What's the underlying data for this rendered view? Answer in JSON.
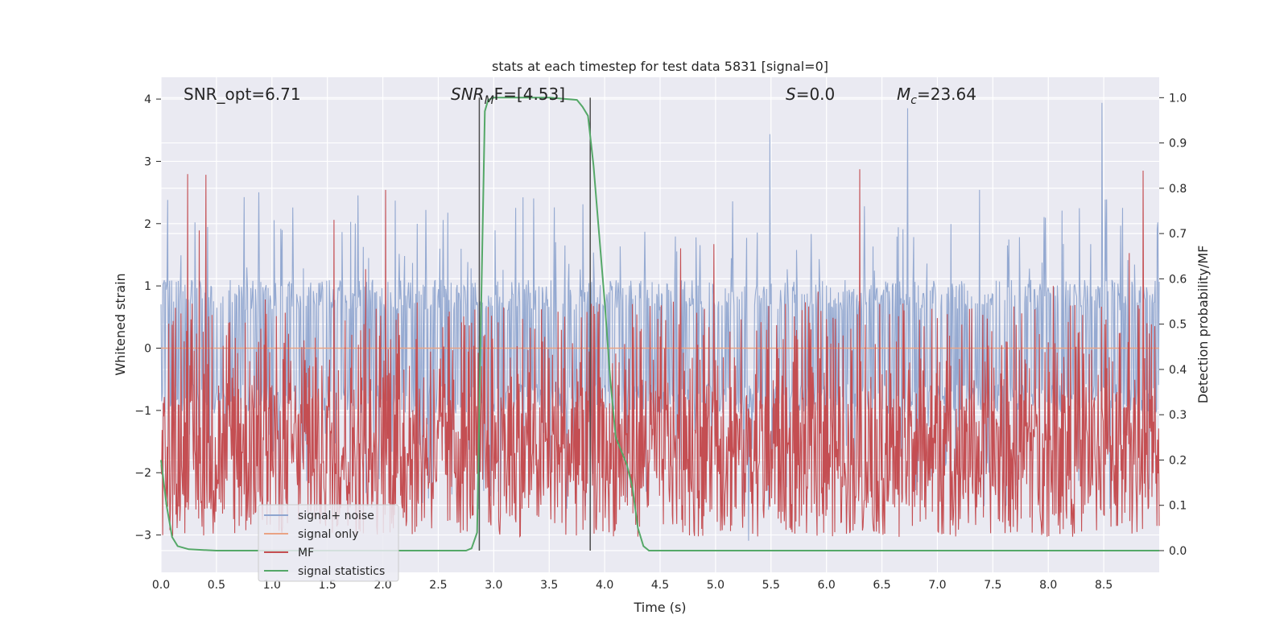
{
  "chart_data": {
    "type": "line",
    "title": "stats at each timestep for test data 5831 [signal=0]",
    "xlabel": "Time (s)",
    "ylabel": "Whitened strain",
    "ylabel_right": "Detection probability/MF",
    "xlim": [
      0.0,
      9.0
    ],
    "ylim": [
      -3.6,
      4.35
    ],
    "ylim_right": [
      -0.048,
      1.045
    ],
    "x_ticks": [
      "0.0",
      "0.5",
      "1.0",
      "1.5",
      "2.0",
      "2.5",
      "3.0",
      "3.5",
      "4.0",
      "4.5",
      "5.0",
      "5.5",
      "6.0",
      "6.5",
      "7.0",
      "7.5",
      "8.0",
      "8.5"
    ],
    "y_ticks": [
      "4",
      "3",
      "2",
      "1",
      "0",
      "−1",
      "−2",
      "−3"
    ],
    "y_right_ticks": [
      "1.0",
      "0.9",
      "0.8",
      "0.7",
      "0.6",
      "0.5",
      "0.4",
      "0.3",
      "0.2",
      "0.1",
      "0.0"
    ],
    "grid": true,
    "legend_position": "lower-left",
    "annotations": {
      "snr_opt": "SNR_opt=6.71",
      "snr_mf_main": "SNR",
      "snr_mf_sub": "M",
      "snr_mf_rest": "F=[4.53]",
      "s_main": "S",
      "s_rest": "=0.0",
      "mc_main": "M",
      "mc_sub": "c",
      "mc_rest": "=23.64"
    },
    "vertical_lines_x": [
      2.87,
      3.87
    ],
    "series": [
      {
        "name": "signal+ noise",
        "color": "#8fa5cf",
        "noise_summary": {
          "core_min": -1.05,
          "core_max": 1.1,
          "peak_max": 3.95,
          "peak_min": -3.25
        }
      },
      {
        "name": "signal only",
        "color": "#e9a384",
        "values_constant": 0.0
      },
      {
        "name": "MF",
        "color": "#c44e52",
        "band_summary": {
          "base_min": 0.03,
          "base_max": 0.55,
          "peak_max": 0.85
        }
      },
      {
        "name": "signal statistics",
        "color": "#55a868",
        "x": [
          0.0,
          0.05,
          0.1,
          0.15,
          0.25,
          0.5,
          1.0,
          2.0,
          2.5,
          2.75,
          2.8,
          2.85,
          2.88,
          2.92,
          2.95,
          3.0,
          3.1,
          3.5,
          3.75,
          3.8,
          3.85,
          3.9,
          3.95,
          4.0,
          4.05,
          4.1,
          4.2,
          4.25,
          4.3,
          4.35,
          4.4,
          5.0,
          9.0
        ],
        "values": [
          0.2,
          0.1,
          0.03,
          0.01,
          0.003,
          0.0,
          0.0,
          0.0,
          0.0,
          0.0,
          0.005,
          0.04,
          0.45,
          0.97,
          0.995,
          1.0,
          1.0,
          1.0,
          0.995,
          0.98,
          0.96,
          0.85,
          0.7,
          0.55,
          0.38,
          0.25,
          0.19,
          0.14,
          0.05,
          0.01,
          0.0,
          0.0,
          0.0
        ]
      }
    ]
  }
}
